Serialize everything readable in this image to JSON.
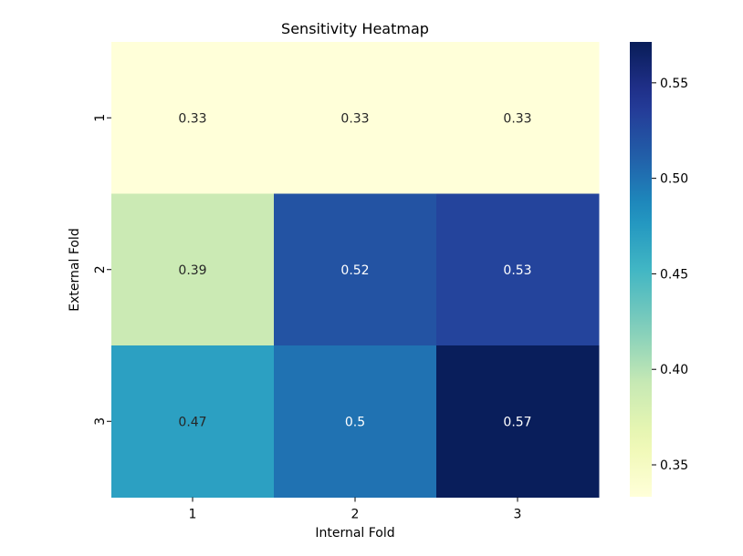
{
  "chart_data": {
    "type": "heatmap",
    "title": "Sensitivity Heatmap",
    "xlabel": "Internal Fold",
    "ylabel": "External Fold",
    "x_categories": [
      "1",
      "2",
      "3"
    ],
    "y_categories": [
      "1",
      "2",
      "3"
    ],
    "values": [
      [
        0.33,
        0.33,
        0.33
      ],
      [
        0.39,
        0.52,
        0.53
      ],
      [
        0.47,
        0.5,
        0.57
      ]
    ],
    "annotations": [
      [
        "0.33",
        "0.33",
        "0.33"
      ],
      [
        "0.39",
        "0.52",
        "0.53"
      ],
      [
        "0.47",
        "0.5",
        "0.57"
      ]
    ],
    "colormap": "YlGnBu",
    "colorbar": {
      "range": [
        0.3333,
        0.5714
      ],
      "ticks": [
        0.35,
        0.4,
        0.45,
        0.5,
        0.55
      ],
      "tick_labels": [
        "0.35",
        "0.40",
        "0.45",
        "0.50",
        "0.55"
      ]
    },
    "grid": false,
    "legend": "colorbar-right"
  }
}
